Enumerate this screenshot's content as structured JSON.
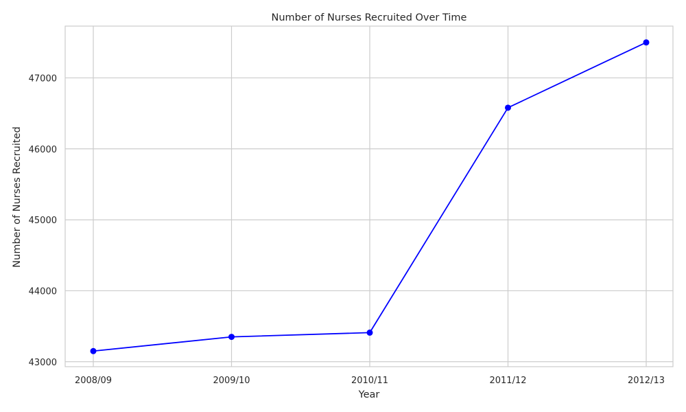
{
  "chart_data": {
    "type": "line",
    "title": "Number of Nurses Recruited Over Time",
    "xlabel": "Year",
    "ylabel": "Number of Nurses Recruited",
    "categories": [
      "2008/09",
      "2009/10",
      "2010/11",
      "2011/12",
      "2012/13"
    ],
    "series": [
      {
        "values": [
          43150,
          43350,
          43410,
          46580,
          47500
        ],
        "color": "#0000ff",
        "marker": "circle"
      }
    ],
    "ylim": [
      42930,
      47730
    ],
    "yticks": [
      43000,
      44000,
      45000,
      46000,
      47000
    ],
    "ytick_labels": [
      "43000",
      "44000",
      "45000",
      "46000",
      "47000"
    ],
    "grid": true,
    "legend": false,
    "colors": {
      "grid": "#cccccc",
      "spine": "#cccccc",
      "text": "#262626",
      "background": "#ffffff"
    }
  }
}
